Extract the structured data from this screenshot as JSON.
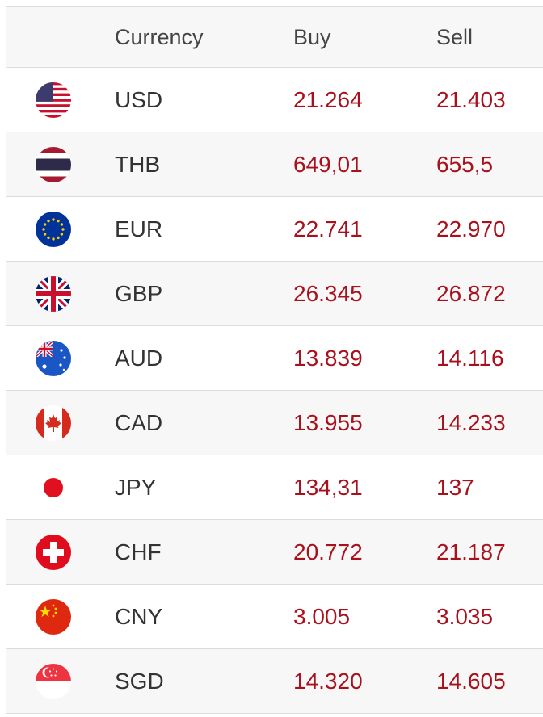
{
  "header": {
    "currency": "Currency",
    "buy": "Buy",
    "sell": "Sell"
  },
  "colors": {
    "rate_text": "#a8101c",
    "code_text": "#333333",
    "stripe": "#f7f7f7",
    "border": "#dcdcdc"
  },
  "rows": [
    {
      "code": "USD",
      "buy": "21.264",
      "sell": "21.403",
      "flag": "us-flag-icon"
    },
    {
      "code": "THB",
      "buy": "649,01",
      "sell": "655,5",
      "flag": "thailand-flag-icon"
    },
    {
      "code": "EUR",
      "buy": "22.741",
      "sell": "22.970",
      "flag": "eu-flag-icon"
    },
    {
      "code": "GBP",
      "buy": "26.345",
      "sell": "26.872",
      "flag": "uk-flag-icon"
    },
    {
      "code": "AUD",
      "buy": "13.839",
      "sell": "14.116",
      "flag": "australia-flag-icon"
    },
    {
      "code": "CAD",
      "buy": "13.955",
      "sell": "14.233",
      "flag": "canada-flag-icon"
    },
    {
      "code": "JPY",
      "buy": "134,31",
      "sell": "137",
      "flag": "japan-flag-icon"
    },
    {
      "code": "CHF",
      "buy": "20.772",
      "sell": "21.187",
      "flag": "switzerland-flag-icon"
    },
    {
      "code": "CNY",
      "buy": "3.005",
      "sell": "3.035",
      "flag": "china-flag-icon"
    },
    {
      "code": "SGD",
      "buy": "14.320",
      "sell": "14.605",
      "flag": "singapore-flag-icon"
    }
  ]
}
